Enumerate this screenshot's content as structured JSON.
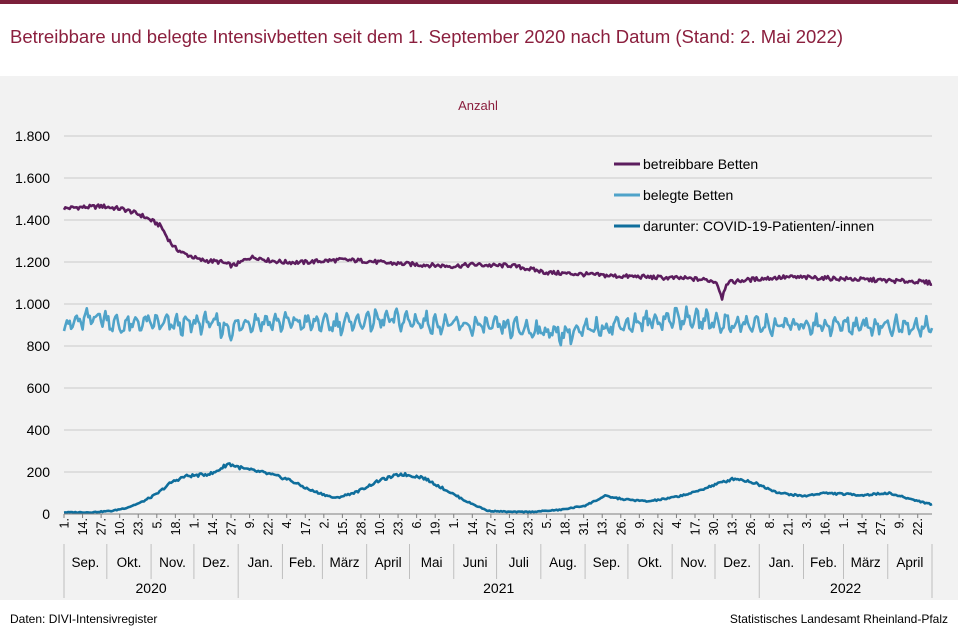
{
  "title": "Betreibbare und belegte Intensivbetten seit dem 1. September 2020 nach Datum (Stand: 2. Mai 2022)",
  "footer": {
    "source": "Daten:  DIVI-Intensivregister",
    "publisher": "Statistisches Landesamt  Rheinland-Pfalz"
  },
  "colors": {
    "accent": "#8b1f3e",
    "betreibbar": "#5c1d5e",
    "belegt": "#4fa3c9",
    "covid": "#0f6e9c"
  },
  "chart_data": {
    "type": "line",
    "ylabel": "Anzahl",
    "ylim": [
      0,
      1800
    ],
    "yticks": [
      0,
      200,
      400,
      600,
      800,
      1000,
      1200,
      1400,
      1600,
      1800
    ],
    "ytick_labels": [
      "0",
      "200",
      "400",
      "600",
      "800",
      "1.000",
      "1.200",
      "1.400",
      "1.600",
      "1.800"
    ],
    "grid": true,
    "legend_position": "top-right",
    "x_start": "2020-09-01",
    "x_end": "2022-05-02",
    "week_tick_labels": [
      "1.",
      "14.",
      "27.",
      "10.",
      "23.",
      "5.",
      "18.",
      "1.",
      "14.",
      "27.",
      "9.",
      "22.",
      "4.",
      "17.",
      "2.",
      "15.",
      "28.",
      "10.",
      "23.",
      "6.",
      "19.",
      "1.",
      "14.",
      "27.",
      "10.",
      "23.",
      "5.",
      "18.",
      "31.",
      "13.",
      "26.",
      "9.",
      "22.",
      "4.",
      "17.",
      "30.",
      "13.",
      "26.",
      "8.",
      "21.",
      "3.",
      "16.",
      "1.",
      "14.",
      "27.",
      "9.",
      "22."
    ],
    "months": [
      {
        "label": "Sep.",
        "start": "2020-09-01"
      },
      {
        "label": "Okt.",
        "start": "2020-10-01"
      },
      {
        "label": "Nov.",
        "start": "2020-11-01"
      },
      {
        "label": "Dez.",
        "start": "2020-12-01"
      },
      {
        "label": "Jan.",
        "start": "2021-01-01"
      },
      {
        "label": "Feb.",
        "start": "2021-02-01"
      },
      {
        "label": "März",
        "start": "2021-03-01"
      },
      {
        "label": "April",
        "start": "2021-04-01"
      },
      {
        "label": "Mai",
        "start": "2021-05-01"
      },
      {
        "label": "Juni",
        "start": "2021-06-01"
      },
      {
        "label": "Juli",
        "start": "2021-07-01"
      },
      {
        "label": "Aug.",
        "start": "2021-08-01"
      },
      {
        "label": "Sep.",
        "start": "2021-09-01"
      },
      {
        "label": "Okt.",
        "start": "2021-10-01"
      },
      {
        "label": "Nov.",
        "start": "2021-11-01"
      },
      {
        "label": "Dez.",
        "start": "2021-12-01"
      },
      {
        "label": "Jan.",
        "start": "2022-01-01"
      },
      {
        "label": "Feb.",
        "start": "2022-02-01"
      },
      {
        "label": "März",
        "start": "2022-03-01"
      },
      {
        "label": "April",
        "start": "2022-04-01"
      }
    ],
    "years": [
      {
        "label": "2020",
        "start": "2020-09-01",
        "end": "2020-12-31"
      },
      {
        "label": "2021",
        "start": "2021-01-01",
        "end": "2021-12-31"
      },
      {
        "label": "2022",
        "start": "2022-01-01",
        "end": "2022-05-02"
      }
    ],
    "series": [
      {
        "name": "betreibbare Betten",
        "color": "#5c1d5e",
        "points": [
          [
            "2020-09-01",
            1455
          ],
          [
            "2020-09-10",
            1460
          ],
          [
            "2020-09-20",
            1462
          ],
          [
            "2020-09-28",
            1466
          ],
          [
            "2020-10-05",
            1458
          ],
          [
            "2020-10-12",
            1452
          ],
          [
            "2020-10-18",
            1440
          ],
          [
            "2020-10-26",
            1420
          ],
          [
            "2020-11-02",
            1395
          ],
          [
            "2020-11-08",
            1370
          ],
          [
            "2020-11-12",
            1320
          ],
          [
            "2020-11-17",
            1270
          ],
          [
            "2020-11-24",
            1240
          ],
          [
            "2020-11-30",
            1225
          ],
          [
            "2020-12-05",
            1210
          ],
          [
            "2020-12-12",
            1205
          ],
          [
            "2020-12-20",
            1200
          ],
          [
            "2020-12-28",
            1182
          ],
          [
            "2021-01-02",
            1195
          ],
          [
            "2021-01-08",
            1220
          ],
          [
            "2021-01-14",
            1222
          ],
          [
            "2021-01-22",
            1208
          ],
          [
            "2021-02-01",
            1200
          ],
          [
            "2021-02-15",
            1198
          ],
          [
            "2021-03-01",
            1205
          ],
          [
            "2021-03-15",
            1210
          ],
          [
            "2021-04-01",
            1205
          ],
          [
            "2021-04-15",
            1195
          ],
          [
            "2021-05-01",
            1190
          ],
          [
            "2021-05-15",
            1185
          ],
          [
            "2021-06-01",
            1180
          ],
          [
            "2021-06-15",
            1188
          ],
          [
            "2021-07-01",
            1182
          ],
          [
            "2021-07-10",
            1185
          ],
          [
            "2021-07-25",
            1165
          ],
          [
            "2021-08-05",
            1150
          ],
          [
            "2021-08-20",
            1145
          ],
          [
            "2021-09-05",
            1140
          ],
          [
            "2021-09-25",
            1132
          ],
          [
            "2021-10-10",
            1130
          ],
          [
            "2021-10-25",
            1125
          ],
          [
            "2021-11-10",
            1122
          ],
          [
            "2021-11-25",
            1115
          ],
          [
            "2021-12-02",
            1105
          ],
          [
            "2021-12-06",
            1030
          ],
          [
            "2021-12-09",
            1100
          ],
          [
            "2021-12-20",
            1112
          ],
          [
            "2022-01-01",
            1120
          ],
          [
            "2022-01-20",
            1128
          ],
          [
            "2022-02-10",
            1125
          ],
          [
            "2022-03-01",
            1120
          ],
          [
            "2022-03-20",
            1115
          ],
          [
            "2022-04-05",
            1110
          ],
          [
            "2022-04-20",
            1108
          ],
          [
            "2022-05-02",
            1100
          ]
        ]
      },
      {
        "name": "belegte Betten",
        "color": "#4fa3c9",
        "points": [
          [
            "2020-09-01",
            900
          ],
          [
            "2020-09-15",
            920
          ],
          [
            "2020-09-25",
            945
          ],
          [
            "2020-10-10",
            895
          ],
          [
            "2020-10-25",
            910
          ],
          [
            "2020-11-10",
            905
          ],
          [
            "2020-11-25",
            900
          ],
          [
            "2020-12-10",
            915
          ],
          [
            "2020-12-27",
            880
          ],
          [
            "2021-01-10",
            920
          ],
          [
            "2021-01-25",
            915
          ],
          [
            "2021-02-15",
            910
          ],
          [
            "2021-03-10",
            905
          ],
          [
            "2021-03-30",
            920
          ],
          [
            "2021-04-20",
            925
          ],
          [
            "2021-05-10",
            915
          ],
          [
            "2021-06-01",
            900
          ],
          [
            "2021-06-20",
            895
          ],
          [
            "2021-07-05",
            890
          ],
          [
            "2021-07-25",
            880
          ],
          [
            "2021-08-15",
            860
          ],
          [
            "2021-08-30",
            870
          ],
          [
            "2021-09-20",
            900
          ],
          [
            "2021-10-15",
            915
          ],
          [
            "2021-11-05",
            935
          ],
          [
            "2021-11-25",
            920
          ],
          [
            "2021-12-15",
            905
          ],
          [
            "2022-01-10",
            895
          ],
          [
            "2022-02-01",
            905
          ],
          [
            "2022-02-20",
            900
          ],
          [
            "2022-03-15",
            900
          ],
          [
            "2022-04-05",
            895
          ],
          [
            "2022-04-20",
            885
          ],
          [
            "2022-05-02",
            905
          ]
        ]
      },
      {
        "name": "darunter: COVID-19-Patienten/-innen",
        "color": "#0f6e9c",
        "points": [
          [
            "2020-09-01",
            8
          ],
          [
            "2020-09-20",
            8
          ],
          [
            "2020-10-05",
            15
          ],
          [
            "2020-10-15",
            30
          ],
          [
            "2020-10-25",
            55
          ],
          [
            "2020-11-05",
            95
          ],
          [
            "2020-11-15",
            150
          ],
          [
            "2020-11-25",
            180
          ],
          [
            "2020-12-05",
            185
          ],
          [
            "2020-12-15",
            195
          ],
          [
            "2020-12-25",
            240
          ],
          [
            "2021-01-05",
            215
          ],
          [
            "2021-01-20",
            195
          ],
          [
            "2021-02-05",
            165
          ],
          [
            "2021-02-20",
            115
          ],
          [
            "2021-03-10",
            75
          ],
          [
            "2021-03-25",
            105
          ],
          [
            "2021-04-10",
            160
          ],
          [
            "2021-04-25",
            190
          ],
          [
            "2021-05-10",
            175
          ],
          [
            "2021-05-25",
            120
          ],
          [
            "2021-06-10",
            60
          ],
          [
            "2021-06-25",
            15
          ],
          [
            "2021-07-10",
            10
          ],
          [
            "2021-07-25",
            10
          ],
          [
            "2021-08-15",
            20
          ],
          [
            "2021-09-01",
            40
          ],
          [
            "2021-09-15",
            85
          ],
          [
            "2021-09-28",
            70
          ],
          [
            "2021-10-15",
            60
          ],
          [
            "2021-10-30",
            75
          ],
          [
            "2021-11-15",
            100
          ],
          [
            "2021-12-01",
            140
          ],
          [
            "2021-12-15",
            170
          ],
          [
            "2021-12-28",
            150
          ],
          [
            "2022-01-15",
            100
          ],
          [
            "2022-02-01",
            85
          ],
          [
            "2022-02-15",
            100
          ],
          [
            "2022-03-01",
            95
          ],
          [
            "2022-03-15",
            90
          ],
          [
            "2022-04-01",
            100
          ],
          [
            "2022-04-15",
            75
          ],
          [
            "2022-05-02",
            45
          ]
        ]
      }
    ]
  }
}
